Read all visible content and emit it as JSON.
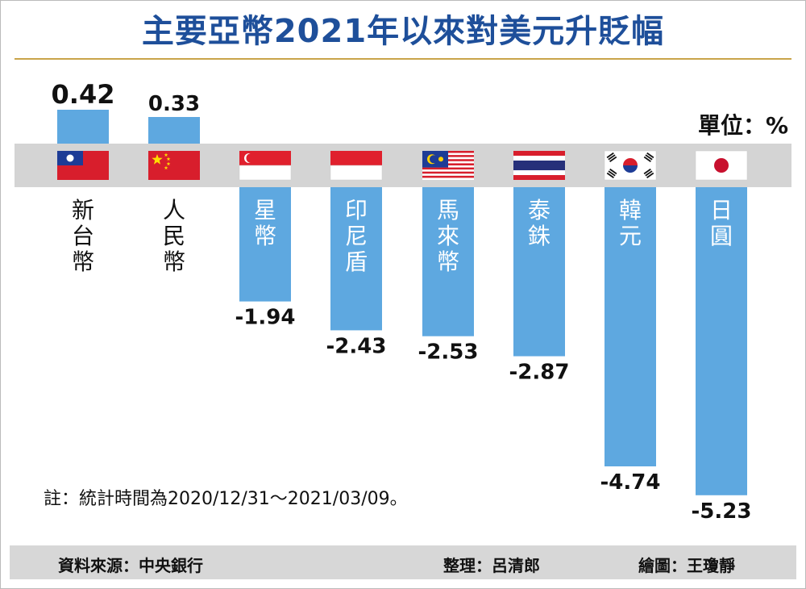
{
  "title": "主要亞幣2021年以來對美元升貶幅",
  "unit": "單位：%",
  "note": "註：統計時間為2020/12/31～2021/03/09。",
  "footer": {
    "source": "資料來源：中央銀行",
    "editor": "整理：呂清郎",
    "chart_by": "繪圖：王瓊靜"
  },
  "colors": {
    "bar": "#5ea8e0",
    "band": "#d4d4d4",
    "title": "#1e4f9a",
    "rule": "#c9a44a"
  },
  "chart_data": {
    "type": "bar",
    "categories": [
      "新台幣",
      "人民幣",
      "星幣",
      "印尼盾",
      "馬來幣",
      "泰銖",
      "韓元",
      "日圓"
    ],
    "values": [
      0.42,
      0.33,
      -1.94,
      -2.43,
      -2.53,
      -2.87,
      -4.74,
      -5.23
    ],
    "value_labels": [
      "0.42",
      "0.33",
      "-1.94",
      "-2.43",
      "-2.53",
      "-2.87",
      "-4.74",
      "-5.23"
    ],
    "flags": [
      "taiwan-flag",
      "china-flag",
      "singapore-flag",
      "indonesia-flag",
      "malaysia-flag",
      "thailand-flag",
      "korea-flag",
      "japan-flag"
    ],
    "ylabel": "單位：%",
    "title": "主要亞幣2021年以來對美元升貶幅"
  }
}
